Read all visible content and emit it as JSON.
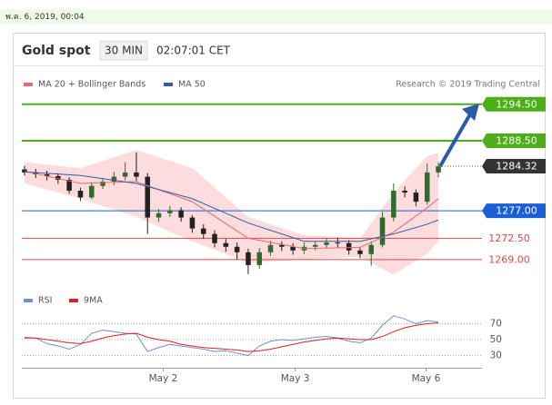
{
  "header": {
    "date": "พ.ค. 6, 2019, 00:04"
  },
  "chart_data": [
    {
      "type": "candlestick",
      "title": "Gold spot",
      "interval": "30 MIN",
      "time": "02:07:01 CET",
      "source": "Research © 2019 Trading Central",
      "xlim": [
        -0.24,
        40.9
      ],
      "xticks": [
        {
          "value": 12.4,
          "label": "May 2"
        },
        {
          "value": 24.2,
          "label": "May 3"
        },
        {
          "value": 35.9,
          "label": "May 6"
        }
      ],
      "ylim": [
        1265.4,
        1296.7
      ],
      "up_color": "#2f6b2f",
      "down_color": "#222222",
      "open": [
        1283.8,
        1283.3,
        1283.0,
        1282.7,
        1282.1,
        1280.3,
        1279.2,
        1281.1,
        1281.8,
        1282.6,
        1283.3,
        1282.6,
        1275.9,
        1276.6,
        1277.1,
        1275.9,
        1274.1,
        1273.2,
        1271.7,
        1271.1,
        1270.2,
        1268.1,
        1270.2,
        1271.4,
        1271.1,
        1270.5,
        1271.1,
        1271.4,
        1271.8,
        1271.7,
        1270.5,
        1269.9,
        1271.4,
        1275.9,
        1280.3,
        1280.0,
        1278.5,
        1283.3
      ],
      "high": [
        1284.4,
        1283.9,
        1283.6,
        1283.2,
        1282.5,
        1280.8,
        1281.7,
        1282.4,
        1283.4,
        1285.0,
        1286.6,
        1283.2,
        1277.3,
        1277.8,
        1277.6,
        1276.3,
        1274.8,
        1273.8,
        1272.4,
        1271.8,
        1270.8,
        1270.9,
        1272.1,
        1272.0,
        1271.7,
        1271.8,
        1272.0,
        1272.5,
        1272.6,
        1272.2,
        1271.0,
        1272.0,
        1276.8,
        1281.5,
        1281.0,
        1280.5,
        1284.8,
        1285.0
      ],
      "low": [
        1282.8,
        1282.4,
        1282.0,
        1281.4,
        1279.8,
        1278.6,
        1278.9,
        1280.6,
        1281.2,
        1282.0,
        1281.9,
        1273.2,
        1275.2,
        1276.0,
        1275.2,
        1273.4,
        1272.4,
        1271.0,
        1270.3,
        1269.0,
        1266.6,
        1267.5,
        1269.6,
        1270.4,
        1269.8,
        1269.9,
        1270.5,
        1270.9,
        1271.0,
        1269.8,
        1269.2,
        1268.0,
        1271.0,
        1275.3,
        1279.2,
        1277.8,
        1278.0,
        1282.5
      ],
      "close": [
        1283.3,
        1283.0,
        1282.7,
        1282.1,
        1280.3,
        1279.2,
        1281.1,
        1281.8,
        1282.6,
        1283.3,
        1282.6,
        1275.9,
        1276.6,
        1277.1,
        1275.9,
        1274.1,
        1273.2,
        1271.7,
        1271.1,
        1270.2,
        1268.1,
        1270.2,
        1271.4,
        1271.1,
        1270.5,
        1271.1,
        1271.4,
        1271.8,
        1271.7,
        1270.5,
        1269.9,
        1271.4,
        1275.9,
        1280.3,
        1280.0,
        1278.5,
        1283.3,
        1284.3
      ],
      "indicator_x": [
        0,
        5,
        10,
        15,
        20,
        25,
        30,
        33,
        36,
        37
      ],
      "series": [
        {
          "name": "MA 20 + Bollinger Bands",
          "color": "#e86a6a",
          "band_color": "#fbd3d3",
          "values": [
            1283.5,
            1281.5,
            1281.8,
            1278.5,
            1272.5,
            1270.8,
            1271.0,
            1273.5,
            1277.5,
            1279.0
          ],
          "upper": [
            1285.0,
            1284.0,
            1287.0,
            1284.0,
            1276.0,
            1273.0,
            1272.5,
            1280.0,
            1286.0,
            1286.5
          ],
          "lower": [
            1281.5,
            1279.0,
            1276.0,
            1272.0,
            1268.5,
            1269.0,
            1269.5,
            1266.5,
            1270.0,
            1272.0
          ]
        },
        {
          "name": "MA 50",
          "color": "#2f5ea8",
          "values": [
            1283.4,
            1282.8,
            1281.5,
            1279.0,
            1275.0,
            1272.0,
            1272.0,
            1273.2,
            1274.8,
            1275.5
          ]
        }
      ],
      "levels": [
        {
          "value": 1294.5,
          "label": "1294.50",
          "color": "#4caf1a",
          "style": "box"
        },
        {
          "value": 1288.5,
          "label": "1288.50",
          "color": "#4caf1a",
          "style": "box"
        },
        {
          "value": 1277,
          "label": "1277.00",
          "color": "#1a5fd6",
          "style": "box"
        },
        {
          "value": 1272.5,
          "label": "1272.50",
          "color": "#e04848",
          "style": "text"
        },
        {
          "value": 1269,
          "label": "1269.00",
          "color": "#e04848",
          "style": "text"
        }
      ],
      "last": {
        "value": 1284.32,
        "label": "1284.32",
        "color": "#333333"
      }
    },
    {
      "type": "line",
      "xlim": [
        -0.24,
        40.9
      ],
      "ylim": [
        14.6,
        88.9
      ],
      "yticks": [
        70,
        50,
        30
      ],
      "series": [
        {
          "name": "RSI",
          "color": "#6c8ee0",
          "values": [
            53,
            52,
            45,
            42,
            38,
            44,
            58,
            62,
            60,
            58,
            57,
            35,
            40,
            44,
            42,
            40,
            38,
            35,
            36,
            33,
            30,
            42,
            48,
            50,
            49,
            51,
            53,
            54,
            52,
            48,
            46,
            52,
            68,
            80,
            76,
            70,
            74,
            72
          ]
        },
        {
          "name": "9MA",
          "color": "#e02020",
          "values": [
            52,
            52,
            50,
            48,
            46,
            45,
            48,
            52,
            55,
            57,
            58,
            53,
            50,
            48,
            44,
            42,
            40,
            39,
            38,
            37,
            35,
            36,
            38,
            41,
            44,
            47,
            49,
            51,
            52,
            51,
            50,
            50,
            54,
            60,
            65,
            68,
            70,
            71
          ]
        }
      ]
    }
  ]
}
